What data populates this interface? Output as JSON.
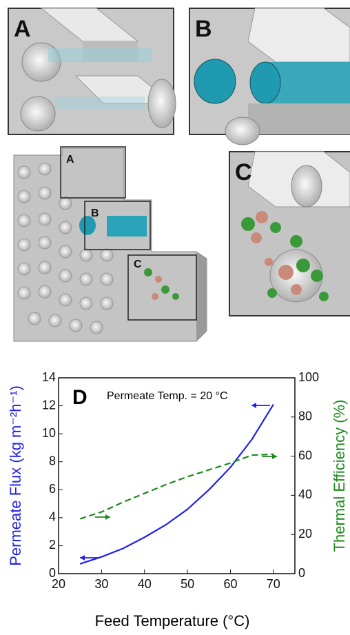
{
  "illustration": {
    "panels": [
      "A",
      "B",
      "C"
    ]
  },
  "chart_data": {
    "type": "line",
    "annotation_label": "D",
    "annotation": "Permeate Temp. = 20 °C",
    "xlabel": "Feed Temperature (°C)",
    "ylabel": "Permeate Flux (kg m⁻²h⁻¹)",
    "y2label": "Thermal Efficiency (%)",
    "x": [
      25,
      30,
      35,
      40,
      45,
      50,
      55,
      60,
      65,
      70
    ],
    "series": [
      {
        "color": "#1f1fef",
        "style": "solid",
        "axis": "y",
        "values": [
          0.7,
          1.2,
          1.8,
          2.6,
          3.5,
          4.6,
          6.0,
          7.6,
          9.6,
          12.1
        ]
      },
      {
        "color": "#1a8a1a",
        "style": "dashed",
        "axis": "y2",
        "values": [
          28,
          31.5,
          36.5,
          41,
          45.5,
          49.5,
          53,
          56.5,
          60.5,
          61
        ]
      }
    ],
    "xlim": [
      20,
      75
    ],
    "xticks": [
      20,
      30,
      40,
      50,
      60,
      70
    ],
    "ylim": [
      0,
      14
    ],
    "yticks": [
      0,
      2,
      4,
      6,
      8,
      10,
      12,
      14
    ],
    "y2lim": [
      0,
      100
    ],
    "y2ticks": [
      0,
      20,
      40,
      60,
      80,
      100
    ]
  }
}
